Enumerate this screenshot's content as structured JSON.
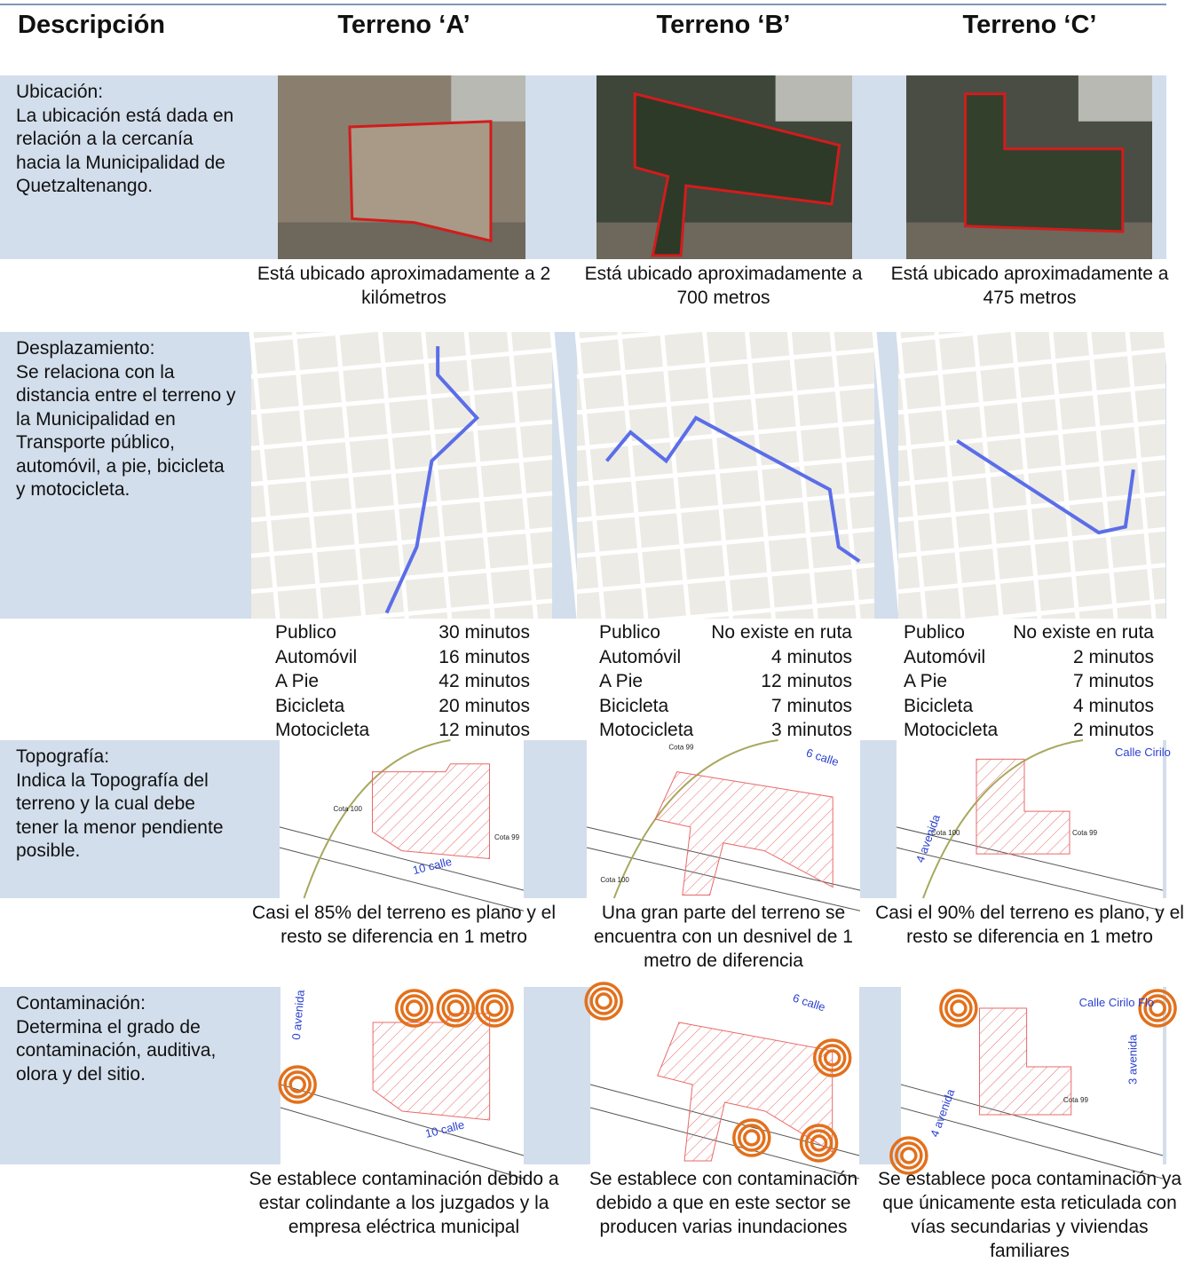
{
  "header": {
    "description": "Descripción",
    "columns": [
      "Terreno ‘A’",
      "Terreno ‘B’",
      "Terreno ‘C’"
    ]
  },
  "rows": [
    {
      "title": "Ubicación:",
      "text": "La ubicación está dada en relación a la cercanía hacia la Municipalidad de Quetzaltenango.",
      "captions": [
        "Está ubicado aproximadamente a 2 kilómetros",
        "Está ubicado aproximadamente a 700 metros",
        "Está ubicado aproximadamente a 475 metros"
      ]
    },
    {
      "title": "Desplazamiento:",
      "text": "Se relaciona con la distancia entre el terreno y la Municipalidad en Transporte público, automóvil, a pie, bicicleta y motocicleta.",
      "times": [
        [
          [
            "Publico",
            "30 minutos"
          ],
          [
            "Automóvil",
            "16 minutos"
          ],
          [
            "A Pie",
            "42 minutos"
          ],
          [
            "Bicicleta",
            "20 minutos"
          ],
          [
            "Motocicleta",
            "12 minutos"
          ]
        ],
        [
          [
            "Publico",
            "No existe en ruta"
          ],
          [
            "Automóvil",
            "4 minutos"
          ],
          [
            "A Pie",
            "12 minutos"
          ],
          [
            "Bicicleta",
            "7 minutos"
          ],
          [
            "Motocicleta",
            "3 minutos"
          ]
        ],
        [
          [
            "Publico",
            "No existe en ruta"
          ],
          [
            "Automóvil",
            "2 minutos"
          ],
          [
            "A Pie",
            "7 minutos"
          ],
          [
            "Bicicleta",
            "4 minutos"
          ],
          [
            "Motocicleta",
            "2 minutos"
          ]
        ]
      ]
    },
    {
      "title": "Topografía:",
      "text": "Indica la Topografía del terreno y la cual debe tener la menor pendiente posible.",
      "image_labels": [
        [
          "Cota 100",
          "Cota 99",
          "10 calle"
        ],
        [
          "Cota 99",
          "6 calle",
          "Cota 100"
        ],
        [
          "Calle Cirilo",
          "Cota 100",
          "Cota 99",
          "4 avenida"
        ]
      ],
      "captions": [
        "Casi el 85% del terreno es plano y el resto se diferencia en 1 metro",
        "Una gran parte del terreno se encuentra con un desnivel de 1 metro de diferencia",
        "Casi el 90% del terreno es plano, y el resto se diferencia en 1 metro"
      ]
    },
    {
      "title": "Contaminación:",
      "text": "Determina el grado de contaminación, auditiva, olora y del sitio.",
      "image_labels": [
        [
          "0 avenida",
          "10 calle"
        ],
        [
          "6 calle"
        ],
        [
          "Calle Cirilo Flo",
          "3 avenida",
          "Cota 99",
          "4 avenida"
        ]
      ],
      "captions": [
        "Se establece contaminación debido a estar colindante a los juzgados y la empresa eléctrica municipal",
        "Se establece con contaminación debido a que en este sector se producen varias inundaciones",
        "Se establece poca contaminación ya que únicamente esta reticulada con vías secundarias y viviendas familiares"
      ]
    }
  ]
}
